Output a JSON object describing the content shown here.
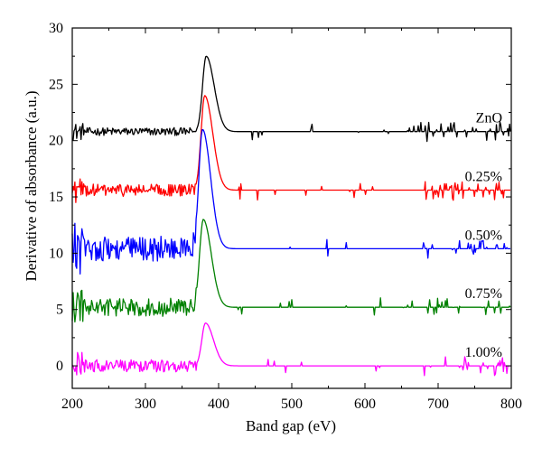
{
  "chart_data": {
    "type": "line",
    "title": "",
    "xlabel": "Band gap (eV)",
    "ylabel": "Derivative of absorbance (a.u.)",
    "xlim": [
      200,
      800
    ],
    "ylim": [
      -2,
      30
    ],
    "xticks": [
      200,
      300,
      400,
      500,
      600,
      700,
      800
    ],
    "yticks": [
      0,
      5,
      10,
      15,
      20,
      25,
      30
    ],
    "grid": false,
    "legend": "none",
    "series": [
      {
        "name": "ZnO",
        "color": "#000000",
        "baseline": 20.8,
        "peak_x": 383,
        "peak_y": 27.5,
        "noise": 0.35,
        "spike_density": 0.5
      },
      {
        "name": "0.25%",
        "color": "#ff0000",
        "baseline": 15.6,
        "peak_x": 381,
        "peak_y": 24.0,
        "noise": 0.55,
        "spike_density": 0.45
      },
      {
        "name": "0.50%",
        "color": "#0000ff",
        "baseline": 10.4,
        "peak_x": 378,
        "peak_y": 21.0,
        "noise": 1.1,
        "spike_density": 0.4
      },
      {
        "name": "0.75%",
        "color": "#008000",
        "baseline": 5.2,
        "peak_x": 379,
        "peak_y": 13.0,
        "noise": 0.8,
        "spike_density": 0.45
      },
      {
        "name": "1.00%",
        "color": "#ff00ff",
        "baseline": 0.0,
        "peak_x": 382,
        "peak_y": 3.8,
        "noise": 0.55,
        "spike_density": 0.4
      }
    ]
  }
}
